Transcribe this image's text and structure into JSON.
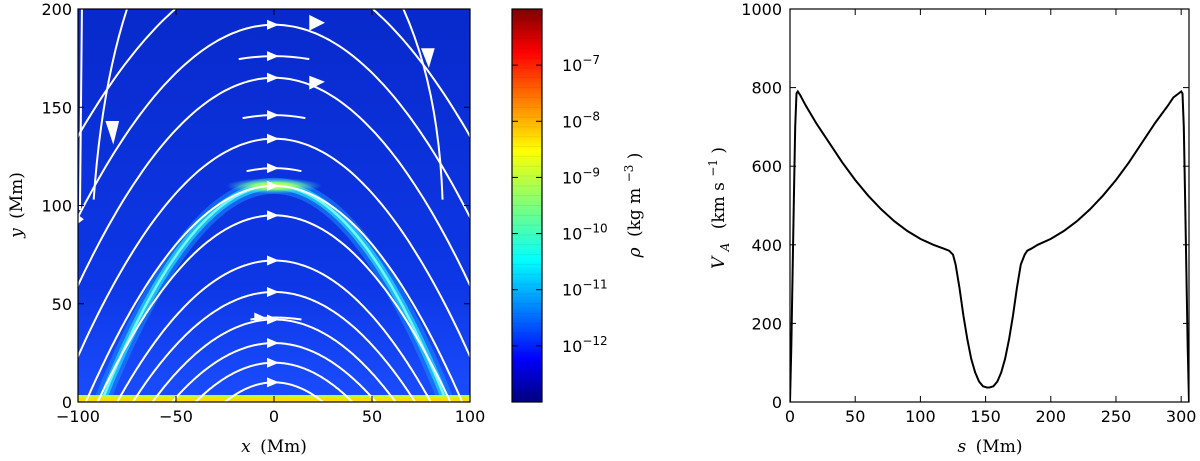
{
  "chart_data": [
    {
      "type": "heatmap",
      "xlabel": {
        "var": "x",
        "unit": "(Mm)"
      },
      "ylabel": {
        "var": "y",
        "unit": "(Mm)"
      },
      "xlim": [
        -100,
        100
      ],
      "ylim": [
        0,
        200
      ],
      "xticks": [
        -100,
        -50,
        0,
        50,
        100
      ],
      "yticks": [
        0,
        50,
        100,
        150,
        200
      ],
      "colorbar": {
        "label": {
          "var": "ρ",
          "unit": "(kg m",
          "exp": "−3",
          "close": ")"
        },
        "scale": "log",
        "range": [
          1e-13,
          1e-06
        ],
        "ticks": [
          {
            "base": "10",
            "exp": "-7",
            "value": 1e-07
          },
          {
            "base": "10",
            "exp": "-8",
            "value": 1e-08
          },
          {
            "base": "10",
            "exp": "-9",
            "value": 1e-09
          },
          {
            "base": "10",
            "exp": "-10",
            "value": 1e-10
          },
          {
            "base": "10",
            "exp": "-11",
            "value": 1e-11
          },
          {
            "base": "10",
            "exp": "-12",
            "value": 1e-12
          }
        ],
        "colormap": "jet"
      },
      "background_color": "#0a2fd4",
      "field_line_color": "#ffffff",
      "dense_loop": {
        "apex_y": 110,
        "foot_x": [
          -88,
          88
        ],
        "density": "1e-9"
      },
      "field_lines": [
        {
          "foot_x": 25,
          "apex_y": 10
        },
        {
          "foot_x": 40,
          "apex_y": 20
        },
        {
          "foot_x": 52,
          "apex_y": 30
        },
        {
          "foot_x": 62,
          "apex_y": 42
        },
        {
          "foot_x": 72,
          "apex_y": 56
        },
        {
          "foot_x": 80,
          "apex_y": 72
        },
        {
          "foot_x": 90,
          "apex_y": 95
        },
        {
          "foot_x": 96,
          "apex_y": 110
        },
        {
          "foot_x": 110,
          "apex_y": 134
        },
        {
          "foot_x": 125,
          "apex_y": 165
        },
        {
          "foot_x": 140,
          "apex_y": 192
        },
        {
          "foot_x": 160,
          "apex_y": 222
        }
      ]
    },
    {
      "type": "line",
      "xlabel": {
        "var": "s",
        "unit": "(Mm)"
      },
      "ylabel": {
        "var": "V",
        "sub": "A",
        "unit": "(km s",
        "exp": "−1",
        "close": ")"
      },
      "xlim": [
        0,
        306
      ],
      "ylim": [
        0,
        1000
      ],
      "xticks": [
        0,
        50,
        100,
        150,
        200,
        250,
        300
      ],
      "yticks": [
        0,
        200,
        400,
        600,
        800,
        1000
      ],
      "series": [
        {
          "x": [
            0,
            1,
            2,
            3,
            4,
            5,
            6,
            8,
            12,
            20,
            30,
            40,
            50,
            60,
            70,
            80,
            90,
            100,
            110,
            118,
            122,
            125,
            127,
            130,
            133,
            136,
            139,
            142,
            145,
            148,
            151,
            153,
            156,
            159,
            162,
            165,
            168,
            171,
            174,
            177,
            180,
            182,
            185,
            190,
            200,
            210,
            220,
            230,
            240,
            250,
            260,
            270,
            280,
            290,
            294,
            298,
            300,
            301,
            302,
            303,
            304,
            305,
            306
          ],
          "y": [
            0,
            140,
            330,
            520,
            700,
            785,
            790,
            780,
            755,
            710,
            660,
            610,
            565,
            525,
            490,
            460,
            435,
            415,
            400,
            390,
            385,
            375,
            350,
            290,
            220,
            160,
            110,
            75,
            52,
            40,
            37,
            37,
            40,
            52,
            75,
            110,
            160,
            220,
            290,
            350,
            375,
            385,
            390,
            400,
            415,
            435,
            460,
            490,
            525,
            565,
            610,
            660,
            710,
            755,
            775,
            785,
            790,
            785,
            700,
            520,
            330,
            140,
            0
          ]
        }
      ]
    }
  ]
}
